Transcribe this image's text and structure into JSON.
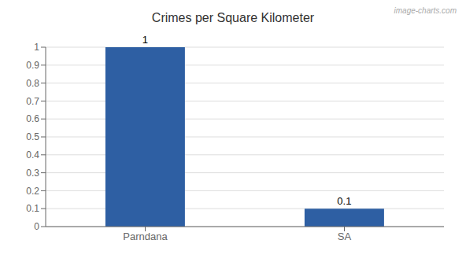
{
  "chart_data": {
    "type": "bar",
    "title": "Crimes per Square Kilometer",
    "categories": [
      "Parndana",
      "SA"
    ],
    "values": [
      1.0,
      0.1
    ],
    "color": "#2e5fa3",
    "ylim": [
      0,
      1.0
    ],
    "yticks": [
      0,
      0.1,
      0.2,
      0.3,
      0.4,
      0.5,
      0.6,
      0.7,
      0.8,
      0.9,
      1.0
    ],
    "grid": true,
    "data_labels": true,
    "annotations": [
      "image-charts.com"
    ]
  }
}
